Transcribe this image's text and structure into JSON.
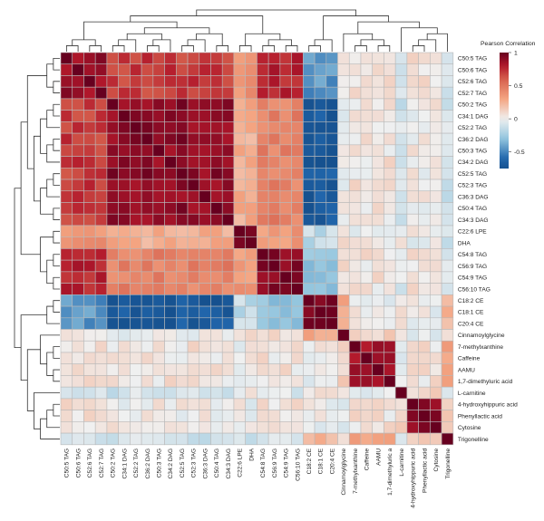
{
  "chart_data": {
    "type": "heatmap",
    "title": "",
    "legend": {
      "title": "Pearson Correlation",
      "ticks": [
        "1",
        "0.5",
        "0",
        "-0.5"
      ],
      "tick_values": [
        1,
        0.5,
        0,
        -0.5
      ],
      "range": [
        -0.75,
        1
      ],
      "placement": "top-right"
    },
    "colors": {
      "negative": "#053061",
      "zero": "#f7f7f7",
      "positive": "#67001f",
      "cell_border": "#b9b9b9",
      "dendrogram": "#333333"
    },
    "row_labels": [
      "C50:5 TAG",
      "C50:6 TAG",
      "C52:6 TAG",
      "C52:7 TAG",
      "C50:2 TAG",
      "C34:1 DAG",
      "C52:2 TAG",
      "C36:2 DAG",
      "C50:3 TAG",
      "C34:2 DAG",
      "C52:5 TAG",
      "C52:3 TAG",
      "C36:3 DAG",
      "C50:4 TAG",
      "C34:3 DAG",
      "C22:6 LPE",
      "DHA",
      "C54:8 TAG",
      "C56:9 TAG",
      "C54:9 TAG",
      "C56:10 TAG",
      "C18:2 CE",
      "C18:1 CE",
      "C20:4 CE",
      "Cinnamoylglycine",
      "7-methylxanthine",
      "Caffeine",
      "AAMU",
      "1,7-dimethyluric acid",
      "L-carnitine",
      "4-hydroxyhippuric acid",
      "Phenyllactic acid",
      "Cytosine",
      "Trigonelline"
    ],
    "col_labels": [
      "C50:5 TAG",
      "C50:6 TAG",
      "C52:6 TAG",
      "C52:7 TAG",
      "C50:2 TAG",
      "C34:1 DAG",
      "C52:2 TAG",
      "C36:2 DAG",
      "C50:3 TAG",
      "C34:2 DAG",
      "C52:5 TAG",
      "C52:3 TAG",
      "C36:3 DAG",
      "C50:4 TAG",
      "C34:3 DAG",
      "C22:6 LPE",
      "DHA",
      "C54:8 TAG",
      "C56:9 TAG",
      "C54:9 TAG",
      "C56:10 TAG",
      "C18:2 CE",
      "C18:1 CE",
      "C20:4 CE",
      "Cinnamoylglycine",
      "7-methylxanthine",
      "Caffeine",
      "AAMU",
      "1,7-dimethyluric a",
      "L-carnitine",
      "4-hydroxyhippuric acid",
      "Phenyllactic acid",
      "Cytosine",
      "Trigonelline"
    ],
    "block_sizes": [
      4,
      11,
      2,
      4,
      3,
      1,
      4,
      1,
      3,
      1
    ],
    "block_correlation": [
      [
        0.88,
        0.7,
        0.35,
        0.78,
        -0.45,
        0.05,
        0.05,
        -0.05,
        0.05,
        -0.08
      ],
      [
        0.7,
        0.9,
        0.25,
        0.45,
        -0.68,
        0.0,
        0.05,
        -0.1,
        0.02,
        -0.1
      ],
      [
        0.35,
        0.25,
        0.95,
        0.35,
        -0.15,
        0.05,
        0.0,
        0.0,
        0.0,
        -0.1
      ],
      [
        0.78,
        0.45,
        0.35,
        0.92,
        -0.3,
        0.1,
        0.05,
        -0.05,
        0.05,
        -0.1
      ],
      [
        -0.45,
        -0.68,
        -0.15,
        -0.3,
        0.95,
        0.25,
        0.0,
        0.05,
        0.0,
        0.2
      ],
      [
        0.05,
        0.0,
        0.05,
        0.1,
        0.25,
        1.0,
        0.1,
        0.0,
        -0.05,
        0.1
      ],
      [
        0.05,
        0.05,
        0.0,
        0.05,
        0.0,
        0.1,
        0.85,
        0.0,
        0.05,
        0.3
      ],
      [
        -0.05,
        -0.1,
        0.0,
        -0.05,
        0.05,
        0.0,
        0.0,
        1.0,
        0.1,
        0.0
      ],
      [
        0.05,
        0.02,
        0.0,
        0.05,
        0.0,
        -0.05,
        0.05,
        0.1,
        0.9,
        0.1
      ],
      [
        -0.08,
        -0.1,
        -0.1,
        -0.1,
        0.2,
        0.1,
        0.3,
        0.0,
        0.1,
        1.0
      ]
    ],
    "row_dendrogram": true,
    "col_dendrogram": true,
    "grid": true
  }
}
